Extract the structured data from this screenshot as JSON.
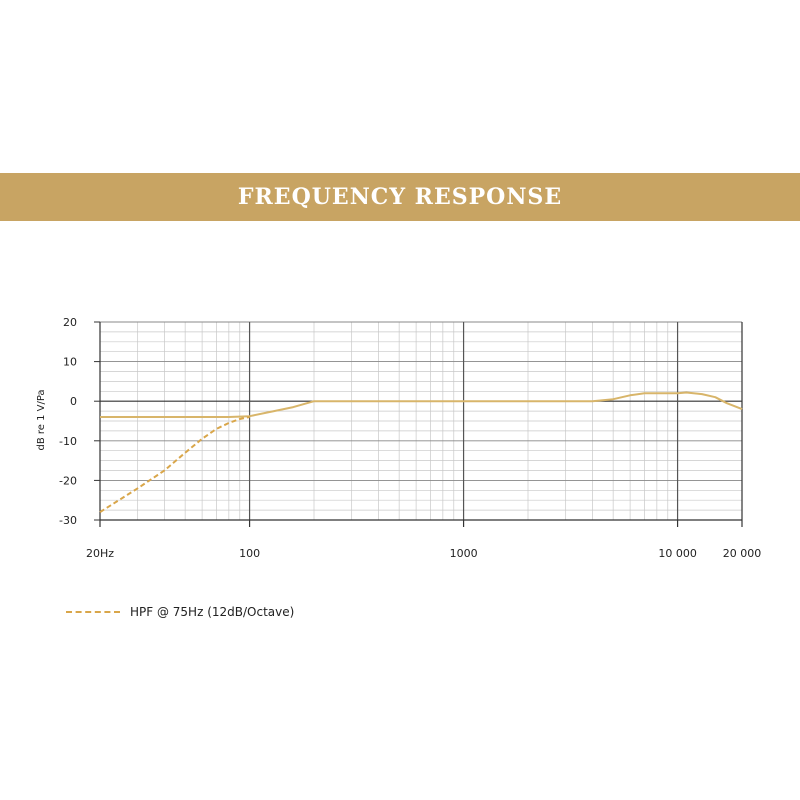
{
  "header": {
    "title": "FREQUENCY RESPONSE"
  },
  "colors": {
    "banner": "#c8a463",
    "response_line": "#d8b56a",
    "hpf_line": "#d9a64a",
    "grid": "#a0a0a0",
    "axis": "#333333"
  },
  "chart_data": {
    "type": "line",
    "title": "FREQUENCY RESPONSE",
    "xlabel": "",
    "ylabel": "dB re 1 V/Pa",
    "xscale": "log",
    "xlim": [
      20,
      20000
    ],
    "ylim": [
      -30,
      20
    ],
    "grid": true,
    "legend_position": "bottom-left",
    "x_ticks": [
      20,
      100,
      1000,
      10000,
      20000
    ],
    "x_tick_labels": [
      "20Hz",
      "100",
      "1000",
      "10 000",
      "20 000"
    ],
    "y_ticks": [
      20,
      10,
      0,
      -10,
      -20,
      -30
    ],
    "y_tick_labels": [
      "20",
      "10",
      "0",
      "-10",
      "-20",
      "-30"
    ],
    "series": [
      {
        "name": "",
        "style": "solid",
        "x": [
          20,
          40,
          80,
          100,
          130,
          160,
          200,
          300,
          500,
          1000,
          2000,
          3000,
          4000,
          5000,
          6000,
          7000,
          8000,
          10000,
          11000,
          13000,
          15000,
          17000,
          20000
        ],
        "y": [
          -4,
          -4,
          -4,
          -3.8,
          -2.5,
          -1.5,
          0,
          0,
          0,
          0,
          0,
          0,
          0,
          0.5,
          1.5,
          2,
          2,
          2,
          2.2,
          1.8,
          1,
          -0.5,
          -2
        ]
      },
      {
        "name": "HPF @ 75Hz (12dB/Octave)",
        "style": "dashed",
        "x": [
          20,
          30,
          40,
          50,
          60,
          70,
          80,
          90,
          100
        ],
        "y": [
          -28,
          -22,
          -17.5,
          -13,
          -9.5,
          -7,
          -5.5,
          -4.5,
          -4
        ]
      }
    ]
  }
}
